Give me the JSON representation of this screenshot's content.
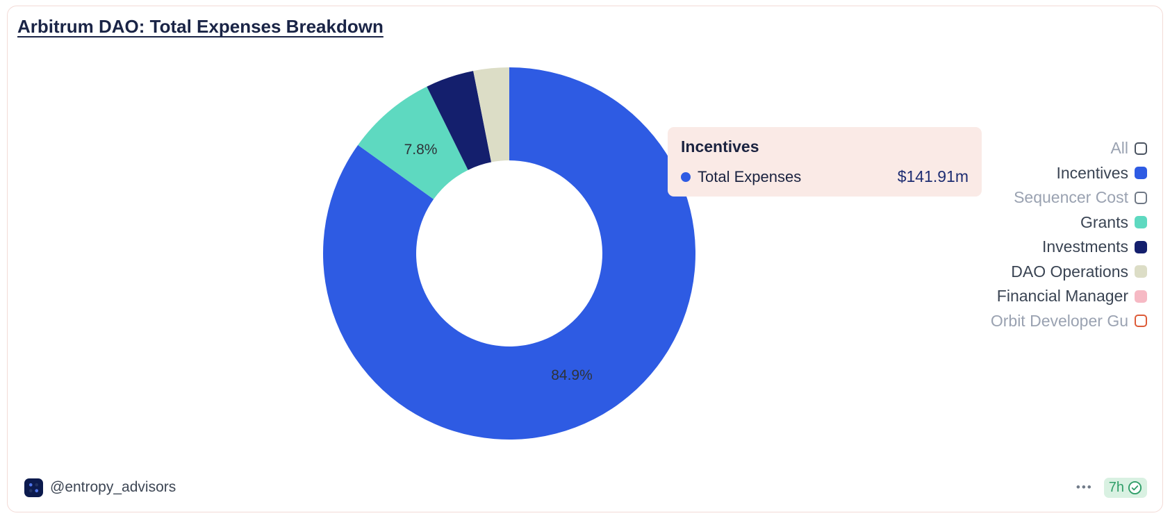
{
  "card": {
    "title": "Arbitrum DAO: Total Expenses Breakdown"
  },
  "chart_data": {
    "type": "pie",
    "donut": true,
    "title": "Arbitrum DAO: Total Expenses Breakdown",
    "series_name": "Total Expenses",
    "unit": "percent",
    "legend_position": "right",
    "segments": [
      {
        "label": "Incentives",
        "value": 84.9,
        "display": "84.9%",
        "color": "#2e5be3",
        "show_label": true
      },
      {
        "label": "Grants",
        "value": 7.8,
        "display": "7.8%",
        "color": "#5ed9c0",
        "show_label": true
      },
      {
        "label": "Investments",
        "value": 4.2,
        "display": "",
        "color": "#141f6d",
        "show_label": false
      },
      {
        "label": "DAO Operations",
        "value": 3.1,
        "display": "",
        "color": "#dcddc6",
        "show_label": false
      }
    ],
    "highlighted": {
      "segment": "Incentives",
      "series": "Total Expenses",
      "value": "$141.91m"
    }
  },
  "tooltip": {
    "title": "Incentives",
    "series_label": "Total Expenses",
    "value": "$141.91m",
    "dot_color": "#2e5be3"
  },
  "legend": {
    "items": [
      {
        "label": "All",
        "swatch_fill": "#ffffff",
        "swatch_border": "#4a5360",
        "text_color": "muted"
      },
      {
        "label": "Incentives",
        "swatch_fill": "#2e5be3",
        "swatch_border": "#2e5be3",
        "text_color": "dark"
      },
      {
        "label": "Sequencer Cost",
        "swatch_fill": "#ffffff",
        "swatch_border": "#6f7885",
        "text_color": "muted"
      },
      {
        "label": "Grants",
        "swatch_fill": "#5ed9c0",
        "swatch_border": "#5ed9c0",
        "text_color": "dark"
      },
      {
        "label": "Investments",
        "swatch_fill": "#141f6d",
        "swatch_border": "#141f6d",
        "text_color": "dark"
      },
      {
        "label": "DAO Operations",
        "swatch_fill": "#dcddc6",
        "swatch_border": "#dcddc6",
        "text_color": "dark"
      },
      {
        "label": "Financial Manager",
        "swatch_fill": "#f6b9c4",
        "swatch_border": "#f6b9c4",
        "text_color": "dark"
      },
      {
        "label": "Orbit Developer Gu",
        "swatch_fill": "#ffffff",
        "swatch_border": "#dd5b38",
        "text_color": "muted"
      }
    ]
  },
  "footer": {
    "handle": "@entropy_advisors",
    "more_label": "•••",
    "timestamp": "7h"
  }
}
